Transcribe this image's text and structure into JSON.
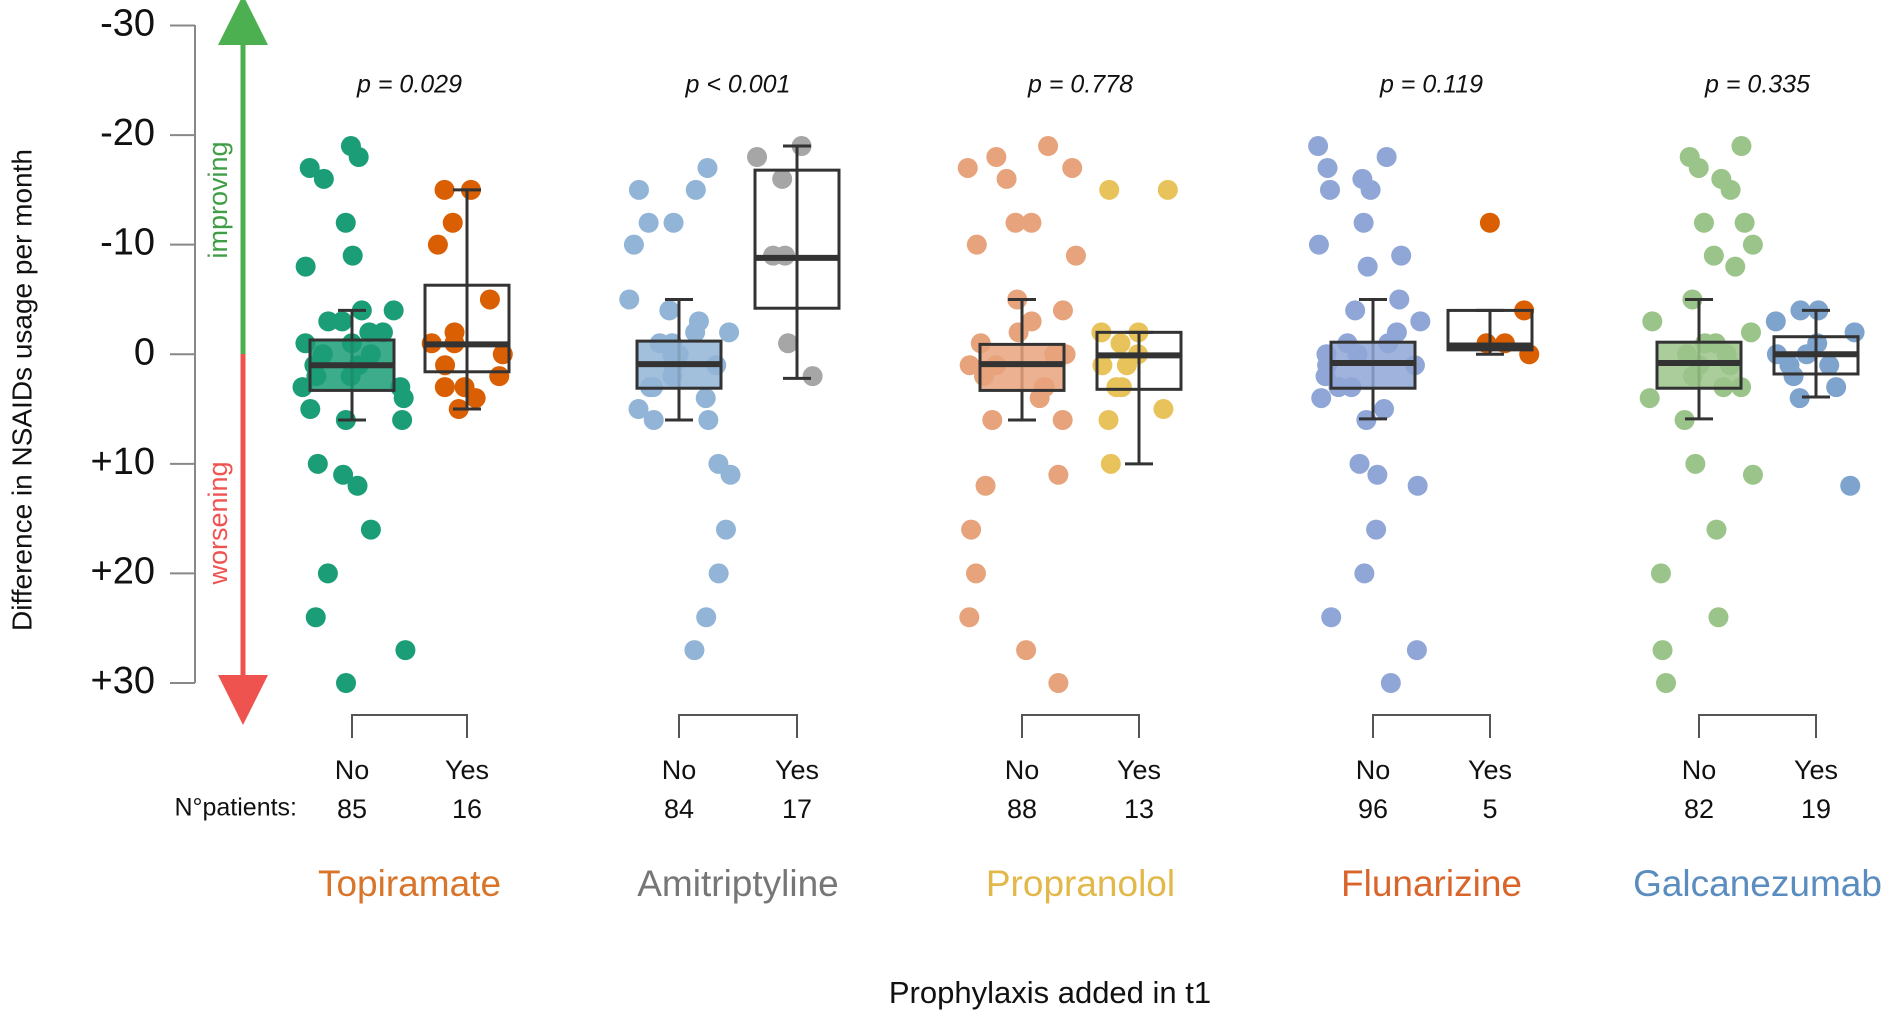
{
  "chart_data": {
    "type": "box",
    "y_label": "Difference in NSAIDs usage per month",
    "x_label": "Prophylaxis added in t1",
    "improving_label": "improving",
    "worsening_label": "worsening",
    "n_label": "N°patients:",
    "ylim": [
      -30,
      30
    ],
    "yticks": [
      -30,
      -20,
      -10,
      0,
      {
        "value": 10,
        "label": "+10"
      },
      {
        "value": 20,
        "label": "+20"
      },
      {
        "value": 30,
        "label": "+30"
      }
    ],
    "groups": [
      {
        "name": "Topiramate",
        "color": "#d9752a",
        "p_label": "p = 0.029",
        "subgroups": [
          {
            "label": "No",
            "n": 85,
            "color": "#1b9e77",
            "box": {
              "min": -4,
              "q1": -1.3,
              "median": 1,
              "q3": 3.3,
              "max": 6
            },
            "points": [
              -19,
              -18,
              -17,
              -16,
              -12,
              -9,
              -8,
              -4,
              -4,
              -3,
              -3,
              -2,
              -2,
              -1,
              -1,
              0,
              0,
              1,
              1,
              2,
              2,
              3,
              3,
              4,
              5,
              6,
              6,
              10,
              11,
              12,
              16,
              20,
              24,
              27,
              30
            ]
          },
          {
            "label": "Yes",
            "n": 16,
            "color": "#d95f02",
            "box": {
              "min": -15,
              "q1": -6.3,
              "median": -0.9,
              "q3": 1.6,
              "max": 5
            },
            "points": [
              -15,
              -15,
              -12,
              -10,
              -5,
              -2,
              -1,
              -1,
              0,
              1,
              2,
              3,
              3,
              4,
              5
            ]
          }
        ]
      },
      {
        "name": "Amitriptyline",
        "color": "#767676",
        "p_label": "p < 0.001",
        "subgroups": [
          {
            "label": "No",
            "n": 84,
            "color": "#92b4d6",
            "box": {
              "min": -5,
              "q1": -1.2,
              "median": 0.9,
              "q3": 3.1,
              "max": 6
            },
            "points": [
              -17,
              -15,
              -15,
              -12,
              -12,
              -10,
              -5,
              -4,
              -3,
              -2,
              -2,
              -1,
              -1,
              0,
              0,
              1,
              1,
              2,
              3,
              3,
              4,
              5,
              6,
              6,
              10,
              11,
              16,
              20,
              24,
              27
            ]
          },
          {
            "label": "Yes",
            "n": 17,
            "color": "#a6a6a6",
            "box": {
              "min": -19,
              "q1": -16.8,
              "median": -8.8,
              "q3": -4.2,
              "max": 2.2
            },
            "points": [
              -19,
              -18,
              -16,
              -9,
              -9,
              -1,
              2
            ]
          }
        ]
      },
      {
        "name": "Propranolol",
        "color": "#e3b84a",
        "p_label": "p = 0.778",
        "subgroups": [
          {
            "label": "No",
            "n": 88,
            "color": "#e7a37c",
            "box": {
              "min": -5,
              "q1": -0.9,
              "median": 0.9,
              "q3": 3.3,
              "max": 6
            },
            "points": [
              -19,
              -18,
              -17,
              -17,
              -16,
              -12,
              -12,
              -10,
              -9,
              -5,
              -4,
              -3,
              -2,
              -1,
              0,
              0,
              1,
              1,
              2,
              3,
              3,
              4,
              6,
              6,
              11,
              12,
              16,
              20,
              24,
              27,
              30
            ]
          },
          {
            "label": "Yes",
            "n": 13,
            "color": "#e8c35c",
            "box": {
              "min": -2,
              "q1": -2,
              "median": 0.1,
              "q3": 3.2,
              "max": 10
            },
            "points": [
              -15,
              -15,
              -2,
              -2,
              -1,
              0,
              1,
              1,
              3,
              3,
              5,
              6,
              10
            ]
          }
        ]
      },
      {
        "name": "Flunarizine",
        "color": "#d9652a",
        "p_label": "p = 0.119",
        "subgroups": [
          {
            "label": "No",
            "n": 96,
            "color": "#8fa6d6",
            "box": {
              "min": -5,
              "q1": -1.1,
              "median": 0.8,
              "q3": 3.1,
              "max": 5.9
            },
            "points": [
              -19,
              -18,
              -17,
              -16,
              -15,
              -15,
              -12,
              -10,
              -9,
              -8,
              -5,
              -4,
              -3,
              -2,
              -1,
              -1,
              0,
              0,
              1,
              1,
              2,
              3,
              3,
              4,
              5,
              6,
              10,
              11,
              12,
              16,
              20,
              24,
              27,
              30
            ]
          },
          {
            "label": "Yes",
            "n": 5,
            "color": "#d95f02",
            "box": {
              "min": -4,
              "q1": -4,
              "median": -0.8,
              "q3": -0.4,
              "max": 0
            },
            "points": [
              -12,
              -4,
              -1,
              -1,
              0
            ]
          }
        ]
      },
      {
        "name": "Galcanezumab",
        "color": "#5b8cbf",
        "p_label": "p = 0.335",
        "subgroups": [
          {
            "label": "No",
            "n": 82,
            "color": "#9bc48a",
            "box": {
              "min": -5,
              "q1": -1.1,
              "median": 0.8,
              "q3": 3.1,
              "max": 5.9
            },
            "points": [
              -19,
              -18,
              -17,
              -16,
              -15,
              -12,
              -12,
              -10,
              -9,
              -8,
              -5,
              -3,
              -2,
              -1,
              -1,
              0,
              0,
              1,
              1,
              2,
              3,
              3,
              4,
              6,
              10,
              11,
              16,
              20,
              24,
              27,
              30
            ]
          },
          {
            "label": "Yes",
            "n": 19,
            "color": "#7ea3cc",
            "box": {
              "min": -4,
              "q1": -1.6,
              "median": 0,
              "q3": 1.8,
              "max": 3.9
            },
            "points": [
              -4,
              -4,
              -3,
              -2,
              -1,
              0,
              0,
              1,
              1,
              2,
              3,
              4,
              12
            ]
          }
        ]
      }
    ]
  }
}
